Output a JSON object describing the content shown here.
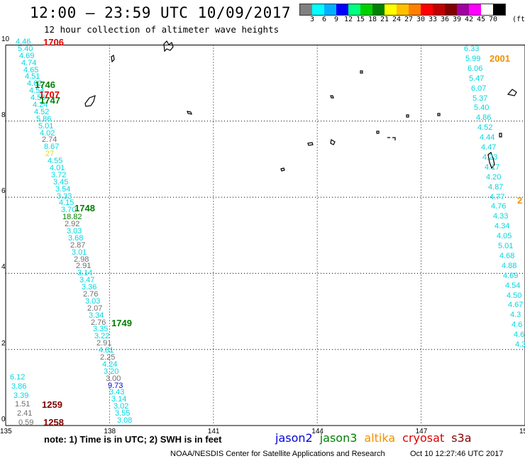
{
  "header": {
    "title": "12:00 – 23:59 UTC 10/09/2017",
    "subtitle": "12 hour collection of altimeter wave heights"
  },
  "colorbar": {
    "unit_label": "(ft)",
    "colors": [
      "#808080",
      "#00ffff",
      "#00b0ff",
      "#0000ff",
      "#00ff80",
      "#00d000",
      "#008000",
      "#ffff00",
      "#ffc000",
      "#ff8000",
      "#ff0000",
      "#c00000",
      "#800000",
      "#a000a0",
      "#ff00ff",
      "#ffffff",
      "#000000"
    ],
    "labels": [
      "3",
      "6",
      "9",
      "12",
      "15",
      "18",
      "21",
      "24",
      "27",
      "30",
      "33",
      "36",
      "39",
      "42",
      "45",
      "70"
    ]
  },
  "axes": {
    "x_ticks": [
      "135",
      "138",
      "141",
      "144",
      "147",
      "150"
    ],
    "y_ticks": [
      "0",
      "2",
      "4",
      "6",
      "8",
      "10"
    ]
  },
  "passes": [
    {
      "time": "1706",
      "color": "#e00000"
    },
    {
      "time": "1746",
      "color": "#008000"
    },
    {
      "time": "1707",
      "color": "#e00000"
    },
    {
      "time": "1747",
      "color": "#008000"
    },
    {
      "time": "1748",
      "color": "#008000"
    },
    {
      "time": "1749",
      "color": "#008000"
    },
    {
      "time": "1259",
      "color": "#800000"
    },
    {
      "time": "1258",
      "color": "#800000"
    },
    {
      "time": "2001",
      "color": "#f09000"
    },
    {
      "time": "2",
      "color": "#f09000"
    }
  ],
  "west_track": [
    {
      "v": "4.46",
      "c": "#00d8e0"
    },
    {
      "v": "5.40",
      "c": "#00d8e0"
    },
    {
      "v": "4.69",
      "c": "#00d8e0"
    },
    {
      "v": "4.74",
      "c": "#00d8e0"
    },
    {
      "v": "4.65",
      "c": "#00d8e0"
    },
    {
      "v": "4.51",
      "c": "#00d8e0"
    },
    {
      "v": "4.62",
      "c": "#00d8e0"
    },
    {
      "v": "4.54",
      "c": "#00d8e0"
    },
    {
      "v": "4.56",
      "c": "#00d8e0"
    },
    {
      "v": "4.24",
      "c": "#00d8e0"
    },
    {
      "v": "4.52",
      "c": "#00d8e0"
    },
    {
      "v": "5.86",
      "c": "#00d8e0"
    },
    {
      "v": "5.01",
      "c": "#00d8e0"
    },
    {
      "v": "4.02",
      "c": "#00d8e0"
    },
    {
      "v": "2.74",
      "c": "#707070"
    },
    {
      "v": "8.67",
      "c": "#00d8e0"
    },
    {
      "v": "27",
      "c": "#e0e000"
    },
    {
      "v": "4.55",
      "c": "#00d8e0"
    },
    {
      "v": "4.01",
      "c": "#00d8e0"
    },
    {
      "v": "3.72",
      "c": "#00d8e0"
    },
    {
      "v": "3.45",
      "c": "#00d8e0"
    },
    {
      "v": "3.54",
      "c": "#00d8e0"
    },
    {
      "v": "3.33",
      "c": "#00d8e0"
    },
    {
      "v": "4.15",
      "c": "#00d8e0"
    },
    {
      "v": "3.70",
      "c": "#00d8e0"
    },
    {
      "v": "18.82",
      "c": "#008000"
    },
    {
      "v": "2.92",
      "c": "#707070"
    },
    {
      "v": "3.03",
      "c": "#00d8e0"
    },
    {
      "v": "3.68",
      "c": "#00d8e0"
    },
    {
      "v": "2.87",
      "c": "#707070"
    },
    {
      "v": "3.01",
      "c": "#00d8e0"
    },
    {
      "v": "2.98",
      "c": "#707070"
    },
    {
      "v": "2.91",
      "c": "#707070"
    },
    {
      "v": "3.14",
      "c": "#00d8e0"
    },
    {
      "v": "3.47",
      "c": "#00d8e0"
    },
    {
      "v": "3.36",
      "c": "#00d8e0"
    },
    {
      "v": "2.76",
      "c": "#707070"
    },
    {
      "v": "3.03",
      "c": "#00d8e0"
    },
    {
      "v": "2.07",
      "c": "#707070"
    },
    {
      "v": "3.34",
      "c": "#00d8e0"
    },
    {
      "v": "2.76",
      "c": "#707070"
    },
    {
      "v": "3.35",
      "c": "#00d8e0"
    },
    {
      "v": "3.22",
      "c": "#00d8e0"
    },
    {
      "v": "2.91",
      "c": "#707070"
    },
    {
      "v": "4.81",
      "c": "#00d8e0"
    },
    {
      "v": "2.25",
      "c": "#707070"
    },
    {
      "v": "4.24",
      "c": "#00d8e0"
    },
    {
      "v": "3.20",
      "c": "#00d8e0"
    },
    {
      "v": "3.00",
      "c": "#707070"
    },
    {
      "v": "9.73",
      "c": "#0000e0"
    },
    {
      "v": "3.43",
      "c": "#00d8e0"
    },
    {
      "v": "3.14",
      "c": "#00d8e0"
    },
    {
      "v": "3.02",
      "c": "#00d8e0"
    },
    {
      "v": "3.55",
      "c": "#00d8e0"
    },
    {
      "v": "3.08",
      "c": "#00d8e0"
    }
  ],
  "southwest_track": [
    {
      "v": "6.12",
      "c": "#00d8e0"
    },
    {
      "v": "3.86",
      "c": "#00d8e0"
    },
    {
      "v": "3.39",
      "c": "#00d8e0"
    },
    {
      "v": "1.51",
      "c": "#707070"
    },
    {
      "v": "2.41",
      "c": "#707070"
    },
    {
      "v": "0.59",
      "c": "#707070"
    }
  ],
  "east_track": [
    {
      "v": "6.33",
      "c": "#00d8e0"
    },
    {
      "v": "5.99",
      "c": "#00d8e0"
    },
    {
      "v": "6.06",
      "c": "#00d8e0"
    },
    {
      "v": "5.47",
      "c": "#00d8e0"
    },
    {
      "v": "6.07",
      "c": "#00d8e0"
    },
    {
      "v": "5.37",
      "c": "#00d8e0"
    },
    {
      "v": "5.40",
      "c": "#00d8e0"
    },
    {
      "v": "4.86",
      "c": "#00d8e0"
    },
    {
      "v": "4.52",
      "c": "#00d8e0"
    },
    {
      "v": "4.44",
      "c": "#00d8e0"
    },
    {
      "v": "4.47",
      "c": "#00d8e0"
    },
    {
      "v": "4.23",
      "c": "#00d8e0"
    },
    {
      "v": "4.17",
      "c": "#00d8e0"
    },
    {
      "v": "4.20",
      "c": "#00d8e0"
    },
    {
      "v": "4.87",
      "c": "#00d8e0"
    },
    {
      "v": "4.77",
      "c": "#00d8e0"
    },
    {
      "v": "4.76",
      "c": "#00d8e0"
    },
    {
      "v": "4.33",
      "c": "#00d8e0"
    },
    {
      "v": "4.34",
      "c": "#00d8e0"
    },
    {
      "v": "4.05",
      "c": "#00d8e0"
    },
    {
      "v": "5.01",
      "c": "#00d8e0"
    },
    {
      "v": "4.68",
      "c": "#00d8e0"
    },
    {
      "v": "4.88",
      "c": "#00d8e0"
    },
    {
      "v": "4.69",
      "c": "#00d8e0"
    },
    {
      "v": "4.54",
      "c": "#00d8e0"
    },
    {
      "v": "4.50",
      "c": "#00d8e0"
    },
    {
      "v": "4.67",
      "c": "#00d8e0"
    },
    {
      "v": "4.3",
      "c": "#00d8e0"
    },
    {
      "v": "4.6",
      "c": "#00d8e0"
    },
    {
      "v": "4.6",
      "c": "#00d8e0"
    },
    {
      "v": "4.3",
      "c": "#00d8e0"
    }
  ],
  "footer": {
    "note": "note:  1) Time is in UTC;  2) SWH is in feet",
    "satellites": [
      {
        "name": "jason2",
        "color": "#0000e0"
      },
      {
        "name": "jason3",
        "color": "#008000"
      },
      {
        "name": "altika",
        "color": "#f09000"
      },
      {
        "name": "cryosat",
        "color": "#e00000"
      },
      {
        "name": "s3a",
        "color": "#800000"
      }
    ],
    "credit": "NOAA/NESDIS Center for Satellite Applications and Research",
    "generated": "Oct 10 12:27:46 UTC 2017"
  }
}
